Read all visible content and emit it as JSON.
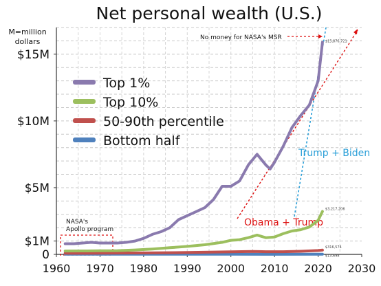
{
  "chart_data": {
    "type": "line",
    "title": "Net personal wealth (U.S.)",
    "unit_note": [
      "M=million",
      "dollars"
    ],
    "xlim": [
      1960,
      2030
    ],
    "ylim": [
      0,
      17
    ],
    "x_ticks": [
      1960,
      1970,
      1980,
      1990,
      2000,
      2010,
      2020,
      2030
    ],
    "y_ticks": [
      {
        "value": 0,
        "label": "0"
      },
      {
        "value": 1,
        "label": "$1M"
      },
      {
        "value": 5,
        "label": "$5M"
      },
      {
        "value": 10,
        "label": "$10M"
      },
      {
        "value": 15,
        "label": "$15M"
      }
    ],
    "grid": true,
    "legend_position": "upper-left",
    "series": [
      {
        "name": "Top 1%",
        "color": "#8a7aae",
        "end_label": "$15,876,721",
        "x": [
          1962,
          1964,
          1966,
          1968,
          1970,
          1972,
          1974,
          1976,
          1978,
          1980,
          1982,
          1984,
          1986,
          1988,
          1990,
          1992,
          1994,
          1996,
          1998,
          2000,
          2002,
          2004,
          2006,
          2008,
          2009,
          2010,
          2012,
          2014,
          2016,
          2018,
          2020,
          2021
        ],
        "y": [
          0.8,
          0.8,
          0.85,
          0.9,
          0.85,
          0.85,
          0.85,
          0.9,
          1.0,
          1.2,
          1.5,
          1.7,
          2.0,
          2.6,
          2.9,
          3.2,
          3.5,
          4.1,
          5.1,
          5.1,
          5.5,
          6.7,
          7.5,
          6.7,
          6.4,
          6.9,
          8.1,
          9.5,
          10.4,
          11.2,
          13.0,
          15.9
        ]
      },
      {
        "name": "Top 10%",
        "color": "#9cbf5e",
        "end_label": "$3,217,206",
        "x": [
          1962,
          1966,
          1970,
          1974,
          1978,
          1982,
          1986,
          1990,
          1994,
          1998,
          2000,
          2002,
          2004,
          2006,
          2008,
          2010,
          2012,
          2014,
          2016,
          2018,
          2020,
          2021
        ],
        "y": [
          0.25,
          0.26,
          0.27,
          0.28,
          0.33,
          0.4,
          0.5,
          0.6,
          0.72,
          0.9,
          1.05,
          1.1,
          1.25,
          1.45,
          1.25,
          1.3,
          1.55,
          1.75,
          1.85,
          2.05,
          2.55,
          3.22
        ]
      },
      {
        "name": "50-90th percentile",
        "color": "#c0504d",
        "end_label": "$316,574",
        "x": [
          1962,
          1970,
          1980,
          1990,
          2000,
          2005,
          2008,
          2012,
          2016,
          2020,
          2021
        ],
        "y": [
          0.08,
          0.09,
          0.11,
          0.14,
          0.19,
          0.22,
          0.2,
          0.2,
          0.23,
          0.29,
          0.32
        ]
      },
      {
        "name": "Bottom half",
        "color": "#4f81bd",
        "end_label": "$13,698",
        "x": [
          1962,
          1980,
          2000,
          2010,
          2021
        ],
        "y": [
          0.01,
          0.01,
          0.012,
          0.005,
          0.014
        ]
      }
    ],
    "annotations": [
      {
        "text": "No money for NASA's MSR",
        "color": "#dd1111"
      },
      {
        "text": "Trump + Biden",
        "color": "#2a9fd8"
      },
      {
        "text": "Obama + Trump",
        "color": "#dd1111"
      },
      {
        "text": "NASA's",
        "color": "#111111"
      },
      {
        "text": "Apollo program",
        "color": "#111111"
      }
    ]
  }
}
